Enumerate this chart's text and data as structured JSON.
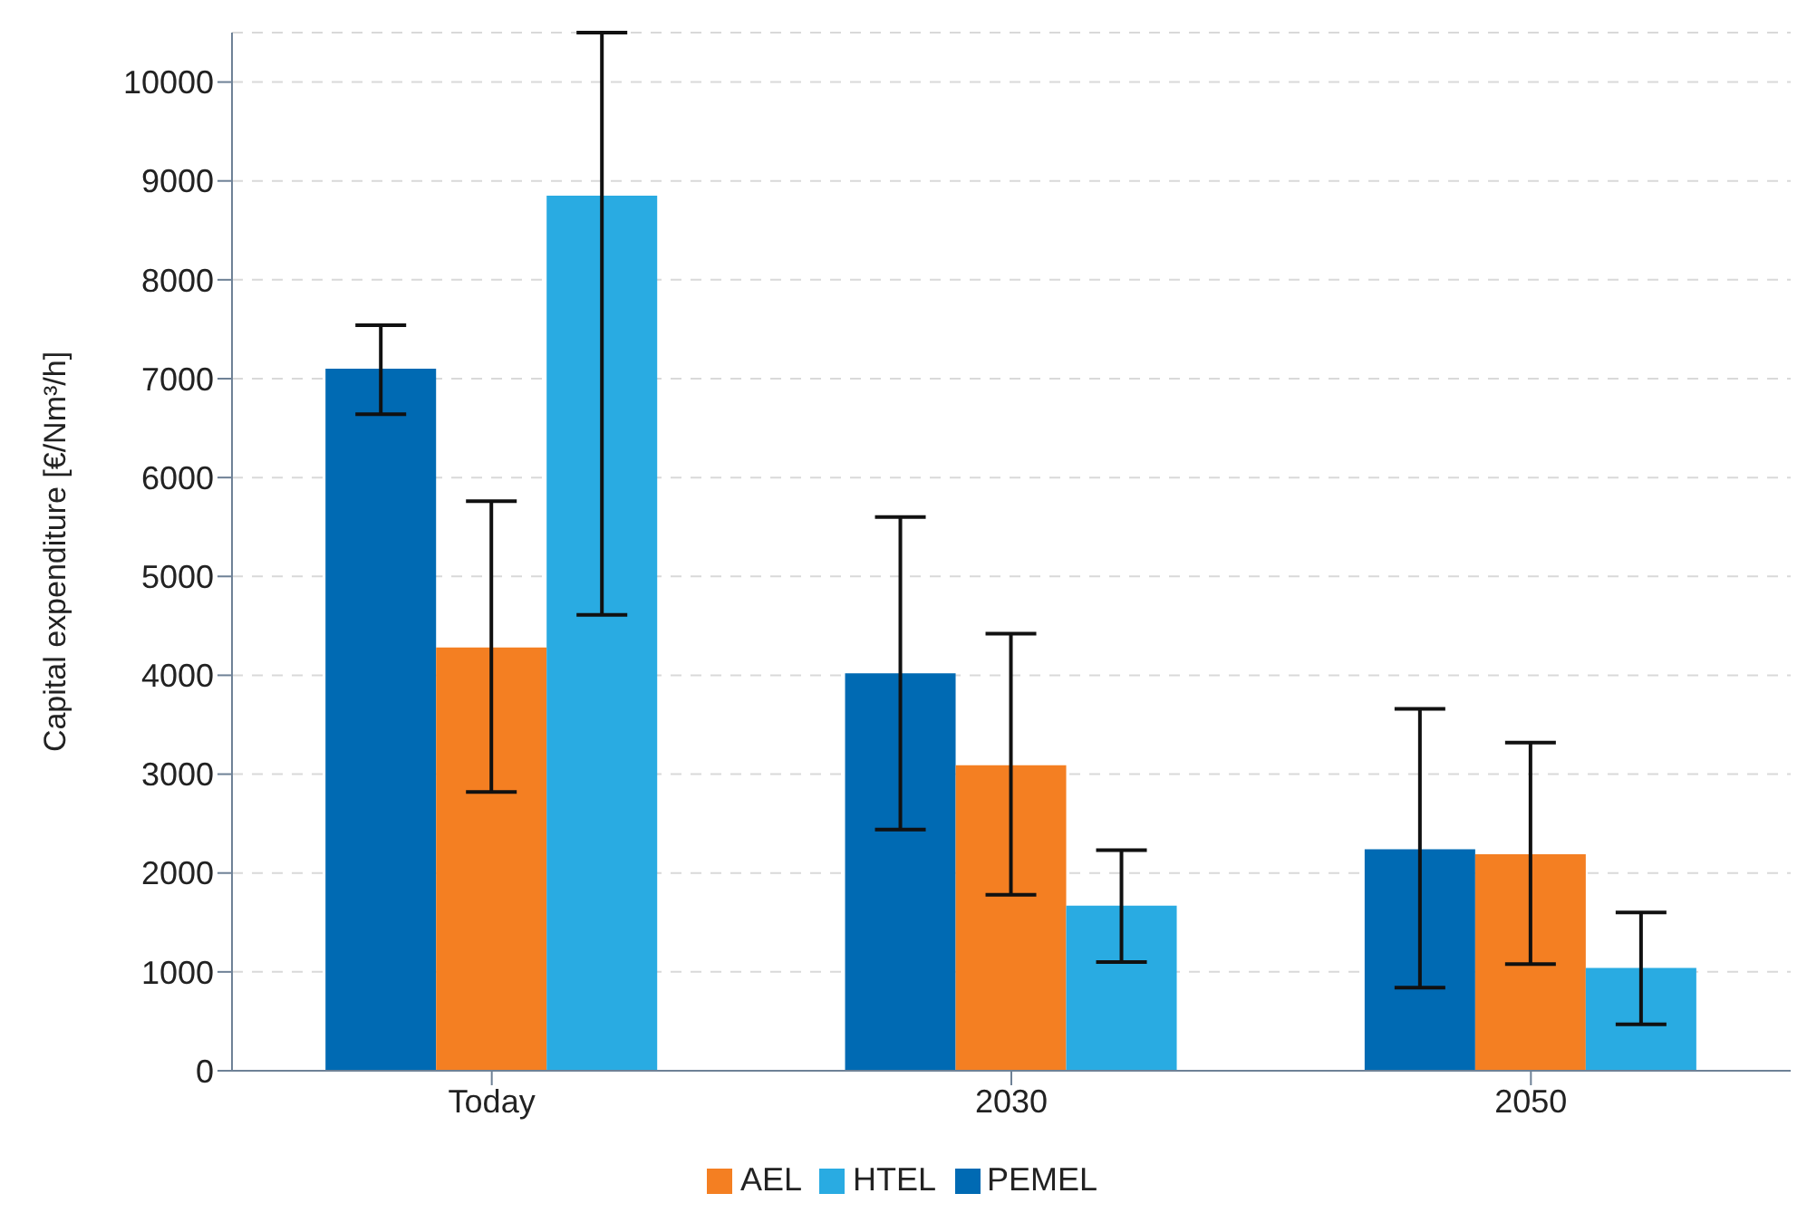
{
  "chart_data": {
    "type": "bar",
    "ylabel": "Capital expenditure [€/Nm³/h]",
    "categories": [
      "Today",
      "2030",
      "2050"
    ],
    "series": [
      {
        "name": "PEMEL",
        "color": "#006ab3",
        "values": [
          7100,
          4020,
          2240
        ],
        "errors": [
          [
            6640,
            7540
          ],
          [
            2440,
            5600
          ],
          [
            840,
            3660
          ]
        ]
      },
      {
        "name": "AEL",
        "color": "#f47f22",
        "values": [
          4280,
          3090,
          2190
        ],
        "errors": [
          [
            2820,
            5760
          ],
          [
            1780,
            4420
          ],
          [
            1080,
            3320
          ]
        ]
      },
      {
        "name": "HTEL",
        "color": "#29abe2",
        "values": [
          8850,
          1670,
          1040
        ],
        "errors": [
          [
            4610,
            10500
          ],
          [
            1100,
            2230
          ],
          [
            470,
            1600
          ]
        ]
      }
    ],
    "ylim": [
      0,
      10500
    ],
    "yticks": [
      0,
      1000,
      2000,
      3000,
      4000,
      5000,
      6000,
      7000,
      8000,
      9000,
      10000
    ],
    "grid": "y",
    "legend": "bottom"
  }
}
